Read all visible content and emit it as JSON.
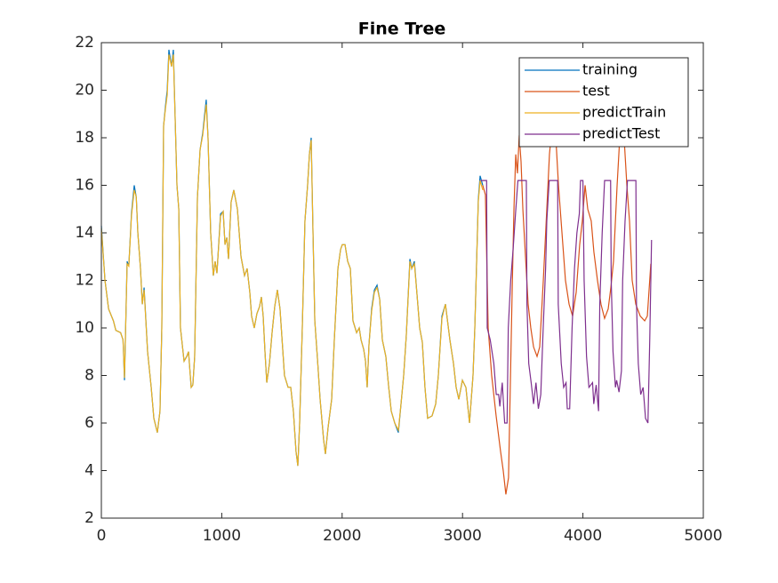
{
  "chart_data": {
    "type": "line",
    "title": "Fine Tree",
    "xlim": [
      0,
      5000
    ],
    "xticks": [
      0,
      1000,
      2000,
      3000,
      4000,
      5000
    ],
    "ylim": [
      2,
      22
    ],
    "yticks": [
      2,
      4,
      6,
      8,
      10,
      12,
      14,
      16,
      18,
      20,
      22
    ],
    "legend": "upper-right",
    "series": [
      {
        "name": "training",
        "color": "#0072BD",
        "x": [
          0,
          30,
          60,
          100,
          120,
          160,
          180,
          192,
          214,
          228,
          250,
          273,
          290,
          303,
          325,
          340,
          355,
          384,
          414,
          436,
          465,
          487,
          502,
          517,
          532,
          547,
          561,
          583,
          598,
          612,
          628,
          643,
          657,
          672,
          687,
          709,
          724,
          746,
          760,
          775,
          798,
          820,
          842,
          871,
          886,
          908,
          930,
          945,
          960,
          990,
          1012,
          1027,
          1042,
          1056,
          1078,
          1100,
          1130,
          1160,
          1189,
          1211,
          1233,
          1248,
          1270,
          1292,
          1314,
          1329,
          1344,
          1359,
          1374,
          1396,
          1418,
          1440,
          1462,
          1484,
          1521,
          1551,
          1573,
          1595,
          1617,
          1632,
          1647,
          1669,
          1691,
          1713,
          1728,
          1743,
          1758,
          1773,
          1795,
          1817,
          1846,
          1861,
          1883,
          1913,
          1935,
          1965,
          1987,
          2001,
          2024,
          2046,
          2068,
          2090,
          2120,
          2142,
          2157,
          2179,
          2194,
          2208,
          2223,
          2245,
          2268,
          2290,
          2312,
          2334,
          2363,
          2385,
          2408,
          2437,
          2467,
          2489,
          2511,
          2533,
          2563,
          2578,
          2600,
          2622,
          2644,
          2666,
          2688,
          2710,
          2747,
          2777,
          2799,
          2829,
          2858,
          2895,
          2925,
          2947,
          2969,
          2999,
          3028,
          3058,
          3087,
          3102,
          3131,
          3146,
          3168
        ],
        "values": [
          14.3,
          12,
          10.8,
          10.3,
          9.9,
          9.8,
          9.5,
          7.8,
          12.8,
          12.6,
          14.8,
          16,
          15.5,
          14,
          12.5,
          11,
          11.7,
          9,
          7.5,
          6.2,
          5.6,
          6.5,
          10,
          18.5,
          19.3,
          20,
          21.7,
          21,
          21.7,
          19,
          16,
          15,
          10,
          9.3,
          8.6,
          8.8,
          9,
          7.5,
          7.6,
          8.8,
          15.5,
          17.5,
          18.2,
          19.6,
          18,
          14,
          12.2,
          12.8,
          12.3,
          14.8,
          14.9,
          13.5,
          13.8,
          12.9,
          15.3,
          15.8,
          15,
          13,
          12.2,
          12.5,
          11.5,
          10.5,
          10,
          10.6,
          10.9,
          11.3,
          10.5,
          9,
          7.7,
          8.5,
          9.8,
          10.9,
          11.6,
          10.8,
          8,
          7.5,
          7.5,
          6.5,
          4.8,
          4.2,
          6,
          10,
          14.5,
          16,
          17.3,
          18,
          14,
          10.3,
          8.7,
          7,
          5.3,
          4.7,
          5.8,
          7,
          9.5,
          12.5,
          13.3,
          13.5,
          13.5,
          12.8,
          12.5,
          10.3,
          9.8,
          10,
          9.5,
          9.1,
          8.6,
          7.5,
          9.3,
          10.8,
          11.6,
          11.8,
          11.2,
          9.5,
          8.8,
          7.6,
          6.5,
          6,
          5.6,
          6.8,
          8,
          9.7,
          12.9,
          12.5,
          12.8,
          11.4,
          10,
          9.4,
          7.5,
          6.2,
          6.3,
          6.8,
          8,
          10.5,
          11,
          9.5,
          8.5,
          7.5,
          7,
          7.8,
          7.5,
          6,
          8,
          10,
          15.4,
          16.4,
          16
        ]
      },
      {
        "name": "test",
        "color": "#D95319",
        "x": [
          3168,
          3190,
          3213,
          3242,
          3279,
          3316,
          3338,
          3360,
          3382,
          3397,
          3412,
          3427,
          3442,
          3456,
          3471,
          3486,
          3501,
          3523,
          3545,
          3567,
          3590,
          3619,
          3641,
          3671,
          3700,
          3722,
          3744,
          3775,
          3797,
          3826,
          3855,
          3885,
          3914,
          3944,
          3973,
          3995,
          4018,
          4040,
          4069,
          4091,
          4121,
          4150,
          4180,
          4210,
          4232,
          4254,
          4284,
          4306,
          4320,
          4342,
          4365,
          4387,
          4409,
          4439,
          4476,
          4513,
          4535,
          4564
        ],
        "values": [
          16,
          15.6,
          10,
          8,
          6.3,
          4.8,
          4,
          3,
          3.7,
          7.6,
          11.5,
          15,
          17.3,
          16.5,
          18.1,
          17,
          15,
          13,
          11,
          10,
          9.2,
          8.8,
          9.2,
          12,
          15,
          17.3,
          18.5,
          18,
          16,
          14,
          12,
          11,
          10.5,
          11.5,
          13.5,
          14.5,
          16,
          15,
          14.5,
          13.2,
          12,
          11,
          10.4,
          10.8,
          11.7,
          12.8,
          16,
          18,
          19.5,
          18,
          16,
          14.5,
          12,
          11,
          10.5,
          10.3,
          10.5,
          12.7
        ]
      },
      {
        "name": "predictTrain",
        "color": "#EDB120",
        "x": [
          0,
          30,
          60,
          100,
          120,
          160,
          180,
          192,
          214,
          228,
          250,
          273,
          290,
          303,
          325,
          340,
          355,
          384,
          414,
          436,
          465,
          487,
          502,
          517,
          532,
          547,
          561,
          583,
          598,
          612,
          628,
          643,
          657,
          672,
          687,
          709,
          724,
          746,
          760,
          775,
          798,
          820,
          842,
          871,
          886,
          908,
          930,
          945,
          960,
          990,
          1012,
          1027,
          1042,
          1056,
          1078,
          1100,
          1130,
          1160,
          1189,
          1211,
          1233,
          1248,
          1270,
          1292,
          1314,
          1329,
          1344,
          1359,
          1374,
          1396,
          1418,
          1440,
          1462,
          1484,
          1521,
          1551,
          1573,
          1595,
          1617,
          1632,
          1647,
          1669,
          1691,
          1713,
          1728,
          1743,
          1758,
          1773,
          1795,
          1817,
          1846,
          1861,
          1883,
          1913,
          1935,
          1965,
          1987,
          2001,
          2024,
          2046,
          2068,
          2090,
          2120,
          2142,
          2157,
          2179,
          2194,
          2208,
          2223,
          2245,
          2268,
          2290,
          2312,
          2334,
          2363,
          2385,
          2408,
          2437,
          2467,
          2489,
          2511,
          2533,
          2563,
          2578,
          2600,
          2622,
          2644,
          2666,
          2688,
          2710,
          2747,
          2777,
          2799,
          2829,
          2858,
          2895,
          2925,
          2947,
          2969,
          2999,
          3028,
          3058,
          3087,
          3102,
          3131,
          3146,
          3168
        ],
        "values": [
          14.2,
          12,
          10.8,
          10.3,
          9.9,
          9.8,
          9.5,
          7.9,
          12.7,
          12.6,
          14.7,
          15.8,
          15.5,
          14,
          12.5,
          11,
          11.6,
          9,
          7.5,
          6.2,
          5.6,
          6.5,
          10,
          18.5,
          19.2,
          19.8,
          21.5,
          21,
          21.5,
          19,
          16,
          15,
          10,
          9.3,
          8.6,
          8.8,
          9,
          7.5,
          7.6,
          8.8,
          15.5,
          17.5,
          18.1,
          19.4,
          18,
          14,
          12.2,
          12.8,
          12.3,
          14.7,
          14.9,
          13.5,
          13.8,
          12.9,
          15.3,
          15.8,
          15,
          13,
          12.2,
          12.5,
          11.5,
          10.5,
          10,
          10.6,
          10.9,
          11.3,
          10.5,
          9,
          7.7,
          8.5,
          9.8,
          10.9,
          11.6,
          10.8,
          8,
          7.5,
          7.5,
          6.5,
          4.8,
          4.2,
          6,
          10,
          14.5,
          16,
          17.3,
          17.9,
          14,
          10.3,
          8.7,
          7,
          5.3,
          4.7,
          5.8,
          7,
          9.5,
          12.5,
          13.3,
          13.5,
          13.5,
          12.8,
          12.5,
          10.3,
          9.8,
          10,
          9.5,
          9.1,
          8.6,
          7.5,
          9.3,
          10.7,
          11.5,
          11.7,
          11.2,
          9.5,
          8.8,
          7.6,
          6.5,
          6,
          5.7,
          6.8,
          8,
          9.7,
          12.8,
          12.5,
          12.7,
          11.4,
          10,
          9.4,
          7.5,
          6.2,
          6.3,
          6.8,
          8,
          10.4,
          11,
          9.5,
          8.5,
          7.5,
          7,
          7.8,
          7.5,
          6,
          8,
          10,
          15.3,
          16.2,
          15.8
        ]
      },
      {
        "name": "predictTest",
        "color": "#7E2F8E",
        "x": [
          3150,
          3200,
          3205,
          3230,
          3260,
          3280,
          3300,
          3310,
          3330,
          3350,
          3370,
          3380,
          3400,
          3420,
          3440,
          3460,
          3530,
          3535,
          3550,
          3570,
          3590,
          3610,
          3630,
          3650,
          3670,
          3690,
          3700,
          3720,
          3790,
          3795,
          3820,
          3840,
          3860,
          3870,
          3890,
          3910,
          3930,
          3950,
          3970,
          3980,
          4000,
          4010,
          4030,
          4050,
          4080,
          4090,
          4110,
          4130,
          4140,
          4160,
          4180,
          4230,
          4235,
          4250,
          4270,
          4280,
          4300,
          4320,
          4330,
          4350,
          4370,
          4440,
          4445,
          4460,
          4480,
          4500,
          4520,
          4540,
          4555,
          4570
        ],
        "values": [
          16.2,
          16.2,
          10,
          9.5,
          8.5,
          7.2,
          7.2,
          6.7,
          7.7,
          6,
          6,
          10,
          12,
          13.3,
          14.8,
          16.2,
          16.2,
          11,
          8.5,
          7.7,
          6.8,
          7.7,
          6.6,
          7.2,
          10,
          12.5,
          14.5,
          16.2,
          16.2,
          11,
          8.5,
          7.5,
          7.7,
          6.6,
          6.6,
          10,
          12.5,
          14,
          14.8,
          16.2,
          16.2,
          12,
          8.8,
          7.5,
          7.7,
          6.8,
          7.6,
          6.5,
          11,
          14,
          16.2,
          16.2,
          12,
          9,
          7.5,
          7.8,
          7.3,
          8.2,
          12,
          14.5,
          16.2,
          16.2,
          11,
          8.5,
          7.2,
          7.5,
          6.2,
          6,
          9.5,
          13.7
        ]
      }
    ]
  }
}
